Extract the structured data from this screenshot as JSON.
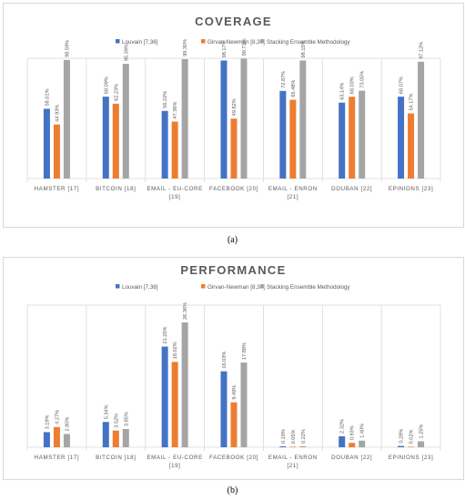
{
  "captions": {
    "a": "(a)",
    "b": "(b)"
  },
  "colors": {
    "s0": "#4472c4",
    "s1": "#ed7d31",
    "s2": "#a5a5a5",
    "grid": "#d9d9d9",
    "text": "#595959"
  },
  "chart_data": [
    {
      "type": "bar",
      "title": "COVERAGE",
      "categories": [
        [
          "HAMSTER [17]"
        ],
        [
          "BITCOIN [18]"
        ],
        [
          "EMAIL - EU-CORE",
          "[19]"
        ],
        [
          "FACEBOOK [20]"
        ],
        [
          "EMAIL - ENRON",
          "[21]"
        ],
        [
          "DOUBAN [22]"
        ],
        [
          "EPINIONS [23]"
        ]
      ],
      "series": [
        {
          "name": "Louvain [7,36]",
          "values": [
            58.01,
            68.09,
            56.22,
            98.17,
            72.87,
            63.14,
            68.07
          ],
          "labels": [
            "58.01%",
            "68.09%",
            "56.22%",
            "98.17%",
            "72.87%",
            "63.14%",
            "68.07%"
          ]
        },
        {
          "name": "Girvan-Newman [8,37]",
          "values": [
            44.93,
            62.23,
            47.36,
            49.82,
            65.48,
            68.03,
            54.17
          ],
          "labels": [
            "44.93%",
            "62.23%",
            "47.36%",
            "49.82%",
            "65.48%",
            "68.03%",
            "54.17%"
          ]
        },
        {
          "name": "Stacking Ensemble Methodology",
          "values": [
            98.59,
            95.39,
            99.3,
            99.71,
            98.15,
            73.05,
            97.12
          ],
          "labels": [
            "98.59%",
            "95.39%",
            "99.30%",
            "99.71%",
            "98.15%",
            "73.05%",
            "97.12%"
          ]
        }
      ],
      "ylim": [
        0,
        100
      ],
      "legend": "top"
    },
    {
      "type": "bar",
      "title": "PERFORMANCE",
      "categories": [
        [
          "HAMSTER [17]"
        ],
        [
          "BITCOIN [18]"
        ],
        [
          "EMAIL - EU-CORE",
          "[19]"
        ],
        [
          "FACEBOOK [20]"
        ],
        [
          "EMAIL - ENRON",
          "[21]"
        ],
        [
          "DOUBAN [22]"
        ],
        [
          "EPINIONS [23]"
        ]
      ],
      "series": [
        {
          "name": "Louvain [7,36]",
          "values": [
            3.19,
            5.34,
            21.25,
            16.03,
            0.19,
            2.32,
            0.28
          ],
          "labels": [
            "3.19%",
            "5.34%",
            "21.25%",
            "16.03%",
            "0.19%",
            "2.32%",
            "0.28%"
          ]
        },
        {
          "name": "Girvan-Newman [8,37]",
          "values": [
            4.27,
            3.52,
            18.02,
            9.49,
            0.05,
            0.93,
            0.02
          ],
          "labels": [
            "4.27%",
            "3.52%",
            "18.02%",
            "9.49%",
            "0.05%",
            "0.93%",
            "0.02%"
          ]
        },
        {
          "name": "Stacking Ensemble Methodology",
          "values": [
            2.8,
            3.85,
            26.36,
            17.88,
            0.22,
            1.4,
            1.25
          ],
          "labels": [
            "2.80%",
            "3.85%",
            "26.36%",
            "17.88%",
            "0.22%",
            "1.40%",
            "1.25%"
          ]
        }
      ],
      "ylim": [
        0,
        30
      ],
      "legend": "top"
    }
  ]
}
